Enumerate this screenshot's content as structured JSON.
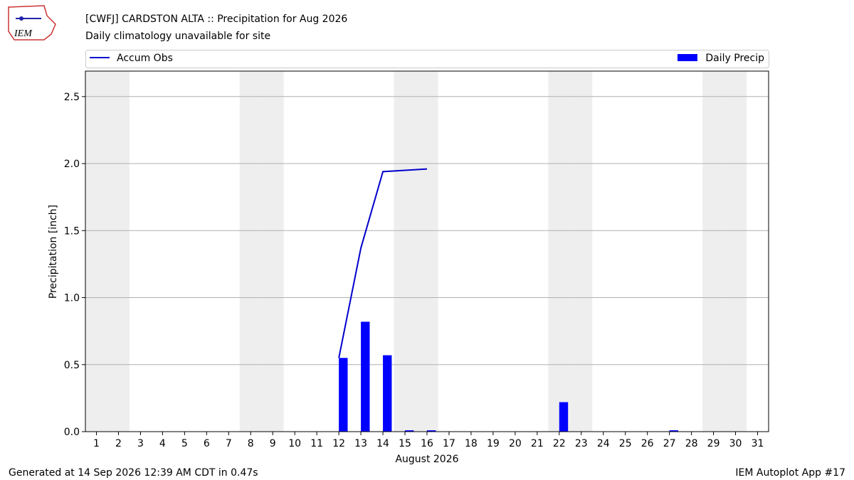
{
  "chart_data": {
    "type": "bar",
    "title": "[CWFJ] CARDSTON  ALTA :: Precipitation for Aug 2026",
    "subtitle": "Daily climatology unavailable for site",
    "x_label": "August 2026",
    "y_label": "Precipitation [inch]",
    "logo_text": "IEM",
    "footer_left": "Generated at 14 Sep 2026 12:39 AM CDT in 0.47s",
    "footer_right": "IEM Autoplot App #17",
    "xlim": [
      0.5,
      31.5
    ],
    "xticks": [
      1,
      2,
      3,
      4,
      5,
      6,
      7,
      8,
      9,
      10,
      11,
      12,
      13,
      14,
      15,
      16,
      17,
      18,
      19,
      20,
      21,
      22,
      23,
      24,
      25,
      26,
      27,
      28,
      29,
      30,
      31
    ],
    "ylim": [
      0,
      2.69
    ],
    "yticks": [
      {
        "value": 0,
        "label": "0.0"
      },
      0.5,
      {
        "value": 1,
        "label": "1.0"
      },
      1.5,
      {
        "value": 2,
        "label": "2.0"
      },
      2.5
    ],
    "grid": true,
    "shaded_days": [
      1,
      2,
      8,
      9,
      15,
      16,
      22,
      23,
      29,
      30
    ],
    "shade_color": "#eeeeee",
    "series": [
      {
        "name": "Accum Obs",
        "type": "line",
        "color": "#0000cc",
        "x": [
          12,
          13,
          14,
          15,
          16
        ],
        "values": [
          0.55,
          1.37,
          1.94,
          1.95,
          1.96
        ]
      },
      {
        "name": "Daily Precip",
        "type": "bar",
        "color": "#0000ff",
        "x": [
          1,
          2,
          3,
          4,
          5,
          6,
          7,
          8,
          9,
          10,
          11,
          12,
          13,
          14,
          15,
          16,
          17,
          18,
          19,
          20,
          21,
          22,
          23,
          24,
          25,
          26,
          27,
          28,
          29,
          30,
          31
        ],
        "values": [
          0,
          0,
          0,
          0,
          0,
          0,
          0,
          0,
          0,
          0,
          0,
          0.55,
          0.82,
          0.57,
          0.01,
          0.01,
          0,
          0,
          0,
          0,
          0,
          0.22,
          0,
          0,
          0,
          0,
          0.01,
          0,
          0,
          0,
          0
        ]
      }
    ]
  }
}
